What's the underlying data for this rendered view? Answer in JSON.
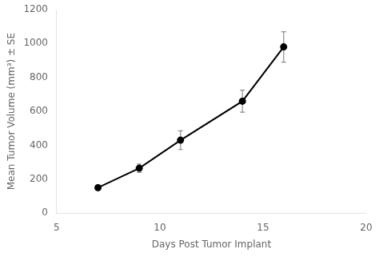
{
  "chart_data": {
    "type": "line",
    "xlabel": "Days Post Tumor Implant",
    "ylabel": "Mean Tumor Volume (mm³) ± SE",
    "x": [
      7,
      9,
      11,
      14,
      16
    ],
    "values": [
      150,
      265,
      430,
      660,
      980
    ],
    "yerr": [
      15,
      25,
      55,
      65,
      90
    ],
    "xlim": [
      5,
      20
    ],
    "ylim": [
      0,
      1200
    ],
    "xticks": [
      5,
      10,
      15,
      20
    ],
    "yticks": [
      0,
      200,
      400,
      600,
      800,
      1000,
      1200
    ],
    "color": "#000000",
    "marker": "circle",
    "line_style": "solid",
    "grid": false
  }
}
